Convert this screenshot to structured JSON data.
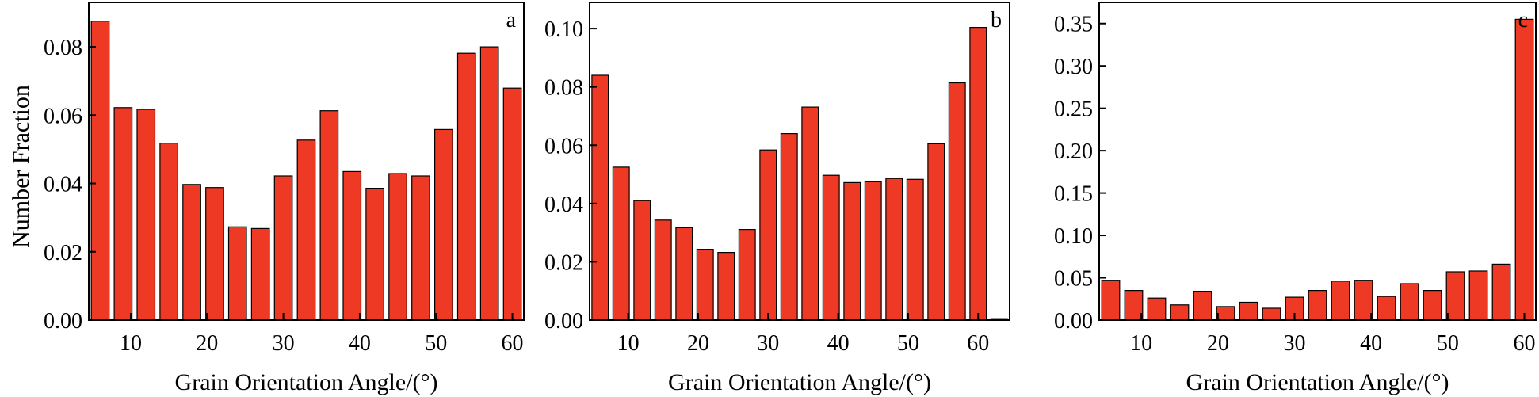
{
  "colors": {
    "bar": "#ee3a24",
    "axis": "#000000"
  },
  "ylabel": "Number Fraction",
  "chart_data": [
    {
      "type": "bar",
      "panel": "a",
      "xlabel": "Grain Orientation Angle/(°)",
      "ylabel": "Number Fraction",
      "x": [
        6,
        9,
        12,
        15,
        18,
        21,
        24,
        27,
        30,
        33,
        36,
        39,
        42,
        45,
        48,
        51,
        54,
        57,
        60
      ],
      "values": [
        0.0875,
        0.0622,
        0.0617,
        0.0518,
        0.0397,
        0.0388,
        0.0273,
        0.0268,
        0.0422,
        0.0527,
        0.0613,
        0.0435,
        0.0386,
        0.0429,
        0.0422,
        0.0558,
        0.0781,
        0.08,
        0.0679
      ],
      "xlim": [
        4.5,
        61.5
      ],
      "xticks": [
        10,
        20,
        30,
        40,
        50,
        60
      ],
      "xtick_labels": [
        "10",
        "20",
        "30",
        "40",
        "50",
        "60"
      ],
      "ylim": [
        0,
        0.093
      ],
      "yticks": [
        0,
        0.02,
        0.04,
        0.06,
        0.08
      ],
      "ytick_labels": [
        "0.00",
        "0.02",
        "0.04",
        "0.06",
        "0.08"
      ],
      "grid": false
    },
    {
      "type": "bar",
      "panel": "b",
      "xlabel": "Grain Orientation Angle/(°)",
      "x": [
        6,
        9,
        12,
        15,
        18,
        21,
        24,
        27,
        30,
        33,
        36,
        39,
        42,
        45,
        48,
        51,
        54,
        57,
        60,
        63
      ],
      "values": [
        0.084,
        0.0525,
        0.041,
        0.0343,
        0.0317,
        0.0243,
        0.0232,
        0.0311,
        0.0584,
        0.064,
        0.0731,
        0.0497,
        0.0472,
        0.0475,
        0.0486,
        0.0483,
        0.0605,
        0.0814,
        0.1004,
        0.0005
      ],
      "xlim": [
        4.5,
        64.5
      ],
      "xticks": [
        10,
        20,
        30,
        40,
        50,
        60
      ],
      "xtick_labels": [
        "10",
        "20",
        "30",
        "40",
        "50",
        "60"
      ],
      "ylim": [
        0,
        0.109
      ],
      "yticks": [
        0,
        0.02,
        0.04,
        0.06,
        0.08,
        0.1
      ],
      "ytick_labels": [
        "0.00",
        "0.02",
        "0.04",
        "0.06",
        "0.08",
        "0.10"
      ],
      "grid": false
    },
    {
      "type": "bar",
      "panel": "c",
      "xlabel": "Grain Orientation Angle/(°)",
      "x": [
        6,
        9,
        12,
        15,
        18,
        21,
        24,
        27,
        30,
        33,
        36,
        39,
        42,
        45,
        48,
        51,
        54,
        57,
        60
      ],
      "values": [
        0.047,
        0.035,
        0.026,
        0.018,
        0.034,
        0.016,
        0.021,
        0.014,
        0.027,
        0.035,
        0.046,
        0.047,
        0.028,
        0.043,
        0.035,
        0.057,
        0.058,
        0.066,
        0.355
      ],
      "xlim": [
        4.5,
        61.5
      ],
      "xticks": [
        10,
        20,
        30,
        40,
        50,
        60
      ],
      "xtick_labels": [
        "10",
        "20",
        "30",
        "40",
        "50",
        "60"
      ],
      "ylim": [
        0,
        0.375
      ],
      "yticks": [
        0,
        0.05,
        0.1,
        0.15,
        0.2,
        0.25,
        0.3,
        0.35
      ],
      "ytick_labels": [
        "0.00",
        "0.05",
        "0.10",
        "0.15",
        "0.20",
        "0.25",
        "0.30",
        "0.35"
      ],
      "grid": false
    }
  ]
}
